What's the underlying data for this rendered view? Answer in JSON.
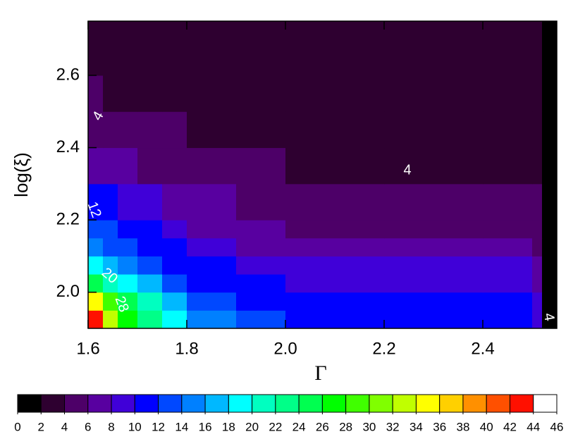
{
  "chart_data": {
    "type": "contour",
    "xlabel": "Γ",
    "ylabel": "log(ξ)",
    "xlim": [
      1.6,
      2.55
    ],
    "ylim": [
      1.9,
      2.75
    ],
    "xticks": [
      1.6,
      1.8,
      {
        "value": 2.0,
        "label": "2.0"
      },
      2.2,
      2.4
    ],
    "yticks": [
      {
        "value": 2.0,
        "label": "2.0"
      },
      2.2,
      2.4,
      2.6
    ],
    "x_edges": [
      1.6,
      1.63,
      1.66,
      1.7,
      1.75,
      1.8,
      1.9,
      2.0,
      2.2,
      2.4,
      2.5,
      2.52,
      2.55
    ],
    "y_edges": [
      1.9,
      1.95,
      2.0,
      2.05,
      2.1,
      2.15,
      2.2,
      2.3,
      2.4,
      2.5,
      2.6,
      2.75
    ],
    "z": [
      [
        42,
        32,
        26,
        22,
        18,
        15,
        12,
        11,
        11,
        11,
        9,
        1
      ],
      [
        34,
        28,
        24,
        20,
        16,
        13,
        11,
        10,
        10,
        10,
        8,
        1
      ],
      [
        24,
        20,
        18,
        16,
        13,
        11,
        10,
        9,
        9,
        9,
        7,
        1
      ],
      [
        18,
        16,
        14,
        12,
        11,
        10,
        9,
        8,
        8,
        8,
        6,
        1
      ],
      [
        14,
        13,
        12,
        11,
        10,
        8,
        7,
        6,
        6,
        6,
        5,
        1
      ],
      [
        13,
        12,
        11,
        10,
        9,
        7,
        6,
        5,
        5,
        5,
        5,
        1
      ],
      [
        11,
        10,
        9,
        8,
        7,
        6,
        5,
        5,
        5,
        5,
        4,
        1
      ],
      [
        7,
        6,
        6,
        5,
        5,
        5,
        4,
        3,
        3,
        3,
        3,
        1
      ],
      [
        5,
        5,
        5,
        4,
        4,
        3,
        3,
        3,
        3,
        3,
        3,
        1
      ],
      [
        4,
        3,
        3,
        3,
        3,
        3,
        3,
        3,
        3,
        3,
        3,
        1
      ],
      [
        3,
        3,
        3,
        3,
        3,
        3,
        3,
        3,
        3,
        3,
        3,
        1
      ]
    ],
    "levels": [
      0,
      2,
      4,
      6,
      8,
      10,
      12,
      14,
      16,
      18,
      20,
      22,
      24,
      26,
      28,
      30,
      32,
      34,
      36,
      38,
      40,
      42,
      44,
      46
    ],
    "colors": [
      "#000000",
      "#2e0030",
      "#4d0068",
      "#5800a0",
      "#4000d8",
      "#0000ff",
      "#0048ff",
      "#0080ff",
      "#00b8ff",
      "#00ffff",
      "#00ffc0",
      "#00ff88",
      "#00ff50",
      "#00ff00",
      "#40ff00",
      "#80ff00",
      "#c0ff00",
      "#ffff00",
      "#ffd000",
      "#ff9000",
      "#ff5000",
      "#ff1000",
      "#ffffff"
    ],
    "contour_labels": [
      "4",
      "4",
      "12",
      "20",
      "28",
      "4"
    ]
  }
}
